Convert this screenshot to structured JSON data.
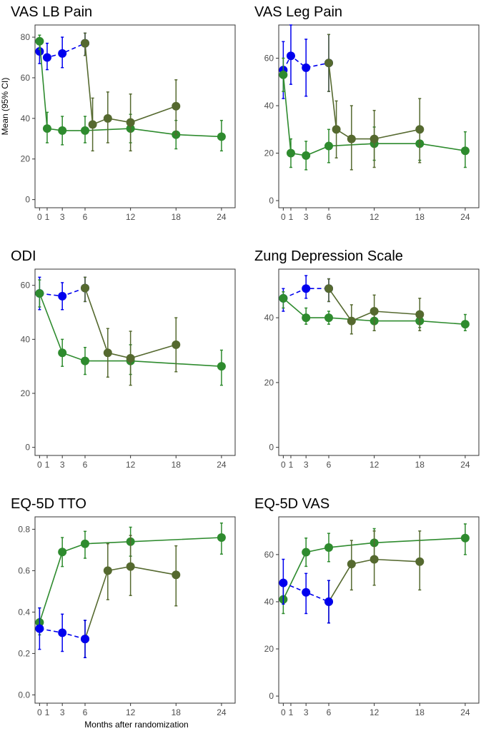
{
  "figure": {
    "ylabel": "Mean (95% CI)",
    "xlabel": "Months after randomization",
    "colors": {
      "blue": "#0000ee",
      "green": "#2e8b2e",
      "olive": "#55692f",
      "frame": "#333333",
      "tick": "#4d4d4d"
    }
  },
  "chart_data": [
    {
      "type": "line",
      "title": "VAS LB Pain",
      "x_ticks": [
        0,
        1,
        3,
        6,
        12,
        18,
        24
      ],
      "y_ticks": [
        0,
        20,
        40,
        60,
        80
      ],
      "xlim": [
        -0.6,
        25.8
      ],
      "ylim": [
        -4,
        86
      ],
      "series": [
        {
          "color": "blue",
          "dashed": true,
          "points": [
            {
              "x": 0,
              "y": 73,
              "lo": 67,
              "hi": 79
            },
            {
              "x": 1,
              "y": 70,
              "lo": 64,
              "hi": 77
            },
            {
              "x": 3,
              "y": 72,
              "lo": 65,
              "hi": 80
            },
            {
              "x": 6,
              "y": 77,
              "lo": 71,
              "hi": 82
            }
          ]
        },
        {
          "color": "green",
          "dashed": false,
          "points": [
            {
              "x": 0,
              "y": 78,
              "lo": 74,
              "hi": 81
            },
            {
              "x": 1,
              "y": 35,
              "lo": 28,
              "hi": 43
            },
            {
              "x": 3,
              "y": 34,
              "lo": 27,
              "hi": 41
            },
            {
              "x": 6,
              "y": 34,
              "lo": 28,
              "hi": 41
            },
            {
              "x": 12,
              "y": 35,
              "lo": 28,
              "hi": 42
            },
            {
              "x": 18,
              "y": 32,
              "lo": 25,
              "hi": 39
            },
            {
              "x": 24,
              "y": 31,
              "lo": 24,
              "hi": 39
            }
          ]
        },
        {
          "color": "olive",
          "dashed": false,
          "points": [
            {
              "x": 6,
              "y": 77,
              "lo": 71,
              "hi": 82
            },
            {
              "x": 7,
              "y": 37,
              "lo": 24,
              "hi": 50
            },
            {
              "x": 9,
              "y": 40,
              "lo": 28,
              "hi": 53
            },
            {
              "x": 12,
              "y": 38,
              "lo": 24,
              "hi": 52
            },
            {
              "x": 18,
              "y": 46,
              "lo": 32,
              "hi": 59
            }
          ]
        }
      ]
    },
    {
      "type": "line",
      "title": "VAS Leg Pain",
      "x_ticks": [
        0,
        1,
        3,
        6,
        12,
        18,
        24
      ],
      "y_ticks": [
        0,
        20,
        40,
        60
      ],
      "xlim": [
        -0.6,
        25.8
      ],
      "ylim": [
        -3,
        74
      ],
      "series": [
        {
          "color": "blue",
          "dashed": true,
          "points": [
            {
              "x": 0,
              "y": 55,
              "lo": 43,
              "hi": 67
            },
            {
              "x": 1,
              "y": 61,
              "lo": 49,
              "hi": 74
            },
            {
              "x": 3,
              "y": 56,
              "lo": 44,
              "hi": 68
            },
            {
              "x": 6,
              "y": 58,
              "lo": 46,
              "hi": 70
            }
          ]
        },
        {
          "color": "green",
          "dashed": false,
          "points": [
            {
              "x": 0,
              "y": 53,
              "lo": 46,
              "hi": 60
            },
            {
              "x": 1,
              "y": 20,
              "lo": 14,
              "hi": 26
            },
            {
              "x": 3,
              "y": 19,
              "lo": 13,
              "hi": 25
            },
            {
              "x": 6,
              "y": 23,
              "lo": 16,
              "hi": 30
            },
            {
              "x": 12,
              "y": 24,
              "lo": 17,
              "hi": 31
            },
            {
              "x": 18,
              "y": 24,
              "lo": 17,
              "hi": 31
            },
            {
              "x": 24,
              "y": 21,
              "lo": 14,
              "hi": 29
            }
          ]
        },
        {
          "color": "olive",
          "dashed": false,
          "points": [
            {
              "x": 6,
              "y": 58,
              "lo": 46,
              "hi": 70
            },
            {
              "x": 7,
              "y": 30,
              "lo": 18,
              "hi": 42
            },
            {
              "x": 9,
              "y": 26,
              "lo": 13,
              "hi": 40
            },
            {
              "x": 12,
              "y": 26,
              "lo": 14,
              "hi": 38
            },
            {
              "x": 18,
              "y": 30,
              "lo": 16,
              "hi": 43
            }
          ]
        }
      ]
    },
    {
      "type": "line",
      "title": "ODI",
      "x_ticks": [
        0,
        1,
        3,
        6,
        12,
        18,
        24
      ],
      "y_ticks": [
        0,
        20,
        40,
        60
      ],
      "xlim": [
        -0.6,
        25.8
      ],
      "ylim": [
        -3,
        66
      ],
      "series": [
        {
          "color": "blue",
          "dashed": true,
          "points": [
            {
              "x": 0,
              "y": 57,
              "lo": 51,
              "hi": 63
            },
            {
              "x": 3,
              "y": 56,
              "lo": 51,
              "hi": 61
            },
            {
              "x": 6,
              "y": 59,
              "lo": 54,
              "hi": 63
            }
          ]
        },
        {
          "color": "green",
          "dashed": false,
          "points": [
            {
              "x": 0,
              "y": 57,
              "lo": 52,
              "hi": 62
            },
            {
              "x": 3,
              "y": 35,
              "lo": 30,
              "hi": 40
            },
            {
              "x": 6,
              "y": 32,
              "lo": 27,
              "hi": 37
            },
            {
              "x": 12,
              "y": 32,
              "lo": 27,
              "hi": 38
            },
            {
              "x": 24,
              "y": 30,
              "lo": 23,
              "hi": 36
            }
          ]
        },
        {
          "color": "olive",
          "dashed": false,
          "points": [
            {
              "x": 6,
              "y": 59,
              "lo": 54,
              "hi": 63
            },
            {
              "x": 9,
              "y": 35,
              "lo": 26,
              "hi": 44
            },
            {
              "x": 12,
              "y": 33,
              "lo": 23,
              "hi": 43
            },
            {
              "x": 18,
              "y": 38,
              "lo": 28,
              "hi": 48
            }
          ]
        }
      ]
    },
    {
      "type": "line",
      "title": "Zung Depression Scale",
      "x_ticks": [
        0,
        1,
        3,
        6,
        12,
        18,
        24
      ],
      "y_ticks": [
        0,
        20,
        40
      ],
      "xlim": [
        -0.6,
        25.8
      ],
      "ylim": [
        -2.5,
        55
      ],
      "series": [
        {
          "color": "blue",
          "dashed": true,
          "points": [
            {
              "x": 0,
              "y": 46,
              "lo": 42,
              "hi": 49
            },
            {
              "x": 3,
              "y": 49,
              "lo": 46,
              "hi": 53
            },
            {
              "x": 6,
              "y": 49,
              "lo": 45,
              "hi": 52
            }
          ]
        },
        {
          "color": "green",
          "dashed": false,
          "points": [
            {
              "x": 0,
              "y": 46,
              "lo": 43,
              "hi": 48
            },
            {
              "x": 3,
              "y": 40,
              "lo": 38,
              "hi": 43
            },
            {
              "x": 6,
              "y": 40,
              "lo": 38,
              "hi": 42
            },
            {
              "x": 12,
              "y": 39,
              "lo": 36,
              "hi": 42
            },
            {
              "x": 18,
              "y": 39,
              "lo": 37,
              "hi": 41
            },
            {
              "x": 24,
              "y": 38,
              "lo": 36,
              "hi": 41
            }
          ]
        },
        {
          "color": "olive",
          "dashed": false,
          "points": [
            {
              "x": 6,
              "y": 49,
              "lo": 45,
              "hi": 52
            },
            {
              "x": 9,
              "y": 39,
              "lo": 35,
              "hi": 44
            },
            {
              "x": 12,
              "y": 42,
              "lo": 36,
              "hi": 47
            },
            {
              "x": 18,
              "y": 41,
              "lo": 36,
              "hi": 46
            }
          ]
        }
      ]
    },
    {
      "type": "line",
      "title": "EQ-5D TTO",
      "x_ticks": [
        0,
        1,
        3,
        6,
        12,
        18,
        24
      ],
      "y_ticks": [
        0.0,
        0.2,
        0.4,
        0.6,
        0.8
      ],
      "y_tick_labels": [
        "0.0",
        "0.2",
        "0.4",
        "0.6",
        "0.8"
      ],
      "xlim": [
        -0.6,
        25.8
      ],
      "ylim": [
        -0.04,
        0.86
      ],
      "series": [
        {
          "color": "green",
          "dashed": false,
          "points": [
            {
              "x": 0,
              "y": 0.35,
              "lo": 0.29,
              "hi": 0.42
            },
            {
              "x": 3,
              "y": 0.69,
              "lo": 0.62,
              "hi": 0.76
            },
            {
              "x": 6,
              "y": 0.73,
              "lo": 0.66,
              "hi": 0.79
            },
            {
              "x": 12,
              "y": 0.74,
              "lo": 0.67,
              "hi": 0.81
            },
            {
              "x": 24,
              "y": 0.76,
              "lo": 0.68,
              "hi": 0.83
            }
          ]
        },
        {
          "color": "olive",
          "dashed": false,
          "points": [
            {
              "x": 6,
              "y": 0.27,
              "lo": 0.18,
              "hi": 0.36
            },
            {
              "x": 9,
              "y": 0.6,
              "lo": 0.46,
              "hi": 0.73
            },
            {
              "x": 12,
              "y": 0.62,
              "lo": 0.48,
              "hi": 0.77
            },
            {
              "x": 18,
              "y": 0.58,
              "lo": 0.43,
              "hi": 0.72
            }
          ]
        },
        {
          "color": "blue",
          "dashed": true,
          "points": [
            {
              "x": 0,
              "y": 0.32,
              "lo": 0.22,
              "hi": 0.42
            },
            {
              "x": 3,
              "y": 0.3,
              "lo": 0.21,
              "hi": 0.39
            },
            {
              "x": 6,
              "y": 0.27,
              "lo": 0.18,
              "hi": 0.36
            }
          ]
        }
      ]
    },
    {
      "type": "line",
      "title": "EQ-5D VAS",
      "x_ticks": [
        0,
        1,
        3,
        6,
        12,
        18,
        24
      ],
      "y_ticks": [
        0,
        20,
        40,
        60
      ],
      "xlim": [
        -0.6,
        25.8
      ],
      "ylim": [
        -3,
        76
      ],
      "series": [
        {
          "color": "green",
          "dashed": false,
          "points": [
            {
              "x": 0,
              "y": 41,
              "lo": 35,
              "hi": 47
            },
            {
              "x": 3,
              "y": 61,
              "lo": 55,
              "hi": 67
            },
            {
              "x": 6,
              "y": 63,
              "lo": 57,
              "hi": 69
            },
            {
              "x": 12,
              "y": 65,
              "lo": 59,
              "hi": 71
            },
            {
              "x": 24,
              "y": 67,
              "lo": 60,
              "hi": 73
            }
          ]
        },
        {
          "color": "olive",
          "dashed": false,
          "points": [
            {
              "x": 6,
              "y": 40,
              "lo": 31,
              "hi": 49
            },
            {
              "x": 9,
              "y": 56,
              "lo": 45,
              "hi": 66
            },
            {
              "x": 12,
              "y": 58,
              "lo": 47,
              "hi": 70
            },
            {
              "x": 18,
              "y": 57,
              "lo": 45,
              "hi": 70
            }
          ]
        },
        {
          "color": "blue",
          "dashed": true,
          "points": [
            {
              "x": 0,
              "y": 48,
              "lo": 39,
              "hi": 58
            },
            {
              "x": 3,
              "y": 44,
              "lo": 35,
              "hi": 52
            },
            {
              "x": 6,
              "y": 40,
              "lo": 31,
              "hi": 49
            }
          ]
        }
      ]
    }
  ]
}
